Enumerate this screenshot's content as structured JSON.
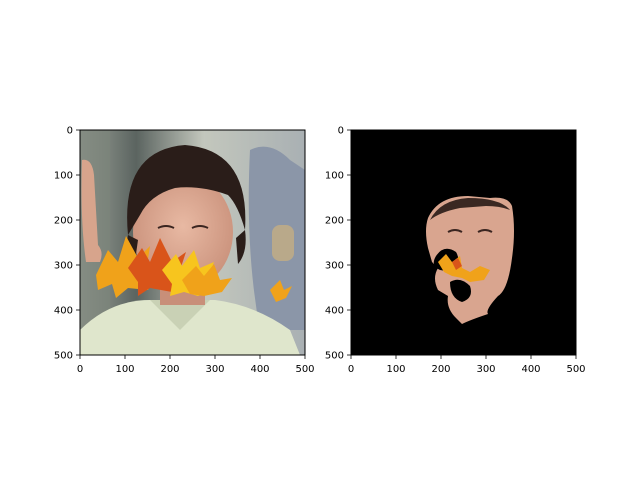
{
  "figure": {
    "background": "#ffffff",
    "panels": [
      {
        "content": "photo",
        "xlim": [
          0,
          500
        ],
        "ylim": [
          500,
          0
        ],
        "xticks": [
          "0",
          "100",
          "200",
          "300",
          "400",
          "500"
        ],
        "yticks": [
          "0",
          "100",
          "200",
          "300",
          "400",
          "500"
        ]
      },
      {
        "content": "masked-face",
        "xlim": [
          0,
          500
        ],
        "ylim": [
          500,
          0
        ],
        "xticks": [
          "0",
          "100",
          "200",
          "300",
          "400",
          "500"
        ],
        "yticks": [
          "0",
          "100",
          "200",
          "300",
          "400",
          "500"
        ]
      }
    ]
  },
  "colors": {
    "photo_background": "#7c857a",
    "wall_light": "#b9bdb1",
    "hair": "#2a1d19",
    "skin": "#d9a58f",
    "shirt": "#dfe6cc",
    "leaf_orange": "#f0a21a",
    "leaf_red": "#d9541a",
    "leaf_yellow": "#f7c51e",
    "mask_black": "#000000"
  }
}
